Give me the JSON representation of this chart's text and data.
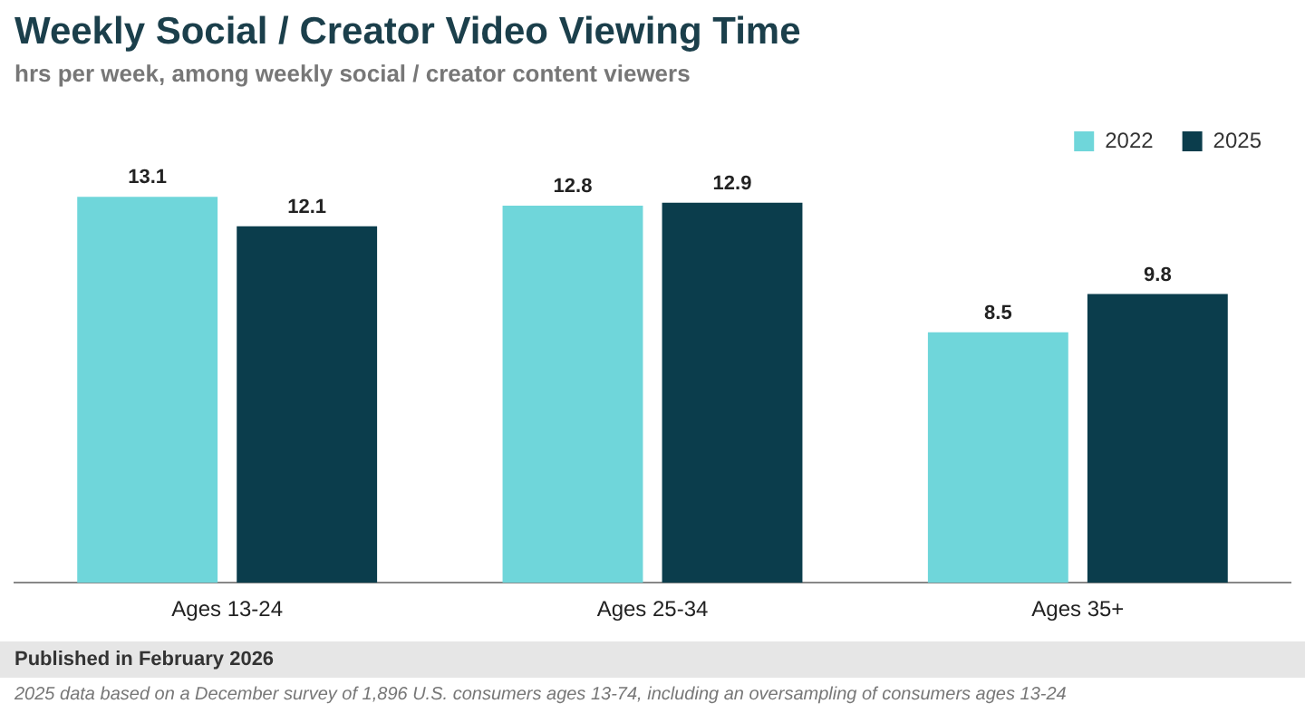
{
  "chart_data": {
    "type": "bar",
    "title": "Weekly Social / Creator Video Viewing Time",
    "subtitle": "hrs per week, among weekly social / creator content viewers",
    "categories": [
      "Ages 13-24",
      "Ages 25-34",
      "Ages 35+"
    ],
    "series": [
      {
        "name": "2022",
        "color": "#6fd6da",
        "values": [
          13.1,
          12.8,
          8.5
        ]
      },
      {
        "name": "2025",
        "color": "#0b3d4c",
        "values": [
          12.1,
          12.9,
          9.8
        ]
      }
    ],
    "data_labels": true,
    "legend": "top right",
    "grid": false,
    "annotations": [
      "Published in February 2026",
      "2025 data based on a December survey of 1,896 U.S. consumers ages 13-74, including an oversampling of consumers ages 13-24"
    ]
  }
}
